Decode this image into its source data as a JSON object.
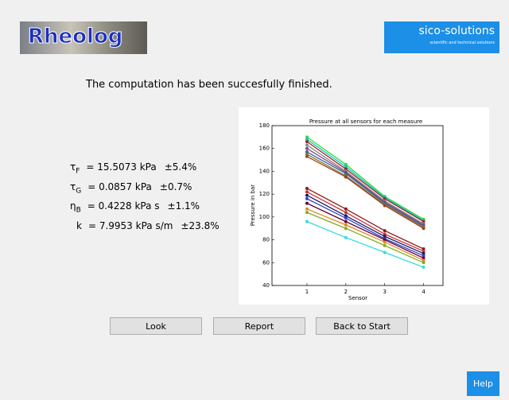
{
  "header": {
    "logo": "Rheolog",
    "brand": "sico-solutions",
    "tagline": "scientific and technical solutions"
  },
  "message": "The computation has been succesfully finished.",
  "parameters": [
    {
      "symbol": "τ",
      "sub": "F",
      "value": "= 15.5073 kPa",
      "error": "±5.4%"
    },
    {
      "symbol": "τ",
      "sub": "G",
      "value": "= 0.0857 kPa",
      "error": "±0.7%"
    },
    {
      "symbol": "η",
      "sub": "B",
      "value": "= 0.4228 kPa s",
      "error": "±1.1%"
    },
    {
      "symbol": "k",
      "value": "= 7.9953 kPa s/m",
      "error": "±23.8%"
    }
  ],
  "buttons": [
    "Look",
    "Report",
    "Back to Start"
  ],
  "help": "Help",
  "chart_data": {
    "type": "line",
    "title": "Pressure at all sensors for each measure",
    "x_label": "Sensor",
    "y_label": "Pressure in bar",
    "x": [
      1,
      2,
      3,
      4
    ],
    "xlim": [
      0.1,
      4.5
    ],
    "xticks": [
      1,
      2,
      3,
      4
    ],
    "ylim": [
      40,
      180
    ],
    "yticks": [
      40,
      60,
      80,
      100,
      120,
      140,
      160,
      180
    ],
    "markers": true,
    "series": [
      {
        "color": "#33dd33",
        "values": [
          170,
          146,
          118,
          98
        ]
      },
      {
        "color": "#00cccc",
        "values": [
          168,
          144,
          117,
          97
        ]
      },
      {
        "color": "#aa2222",
        "values": [
          166,
          142,
          116,
          96
        ]
      },
      {
        "color": "#888888",
        "values": [
          163,
          140,
          114,
          94
        ]
      },
      {
        "color": "#884488",
        "values": [
          160,
          139,
          113,
          93
        ]
      },
      {
        "color": "#336699",
        "values": [
          157,
          138,
          112,
          92
        ]
      },
      {
        "color": "#887733",
        "values": [
          155,
          136,
          111,
          91
        ]
      },
      {
        "color": "#994422",
        "values": [
          153,
          135,
          110,
          90
        ]
      },
      {
        "color": "#8b1a1a",
        "values": [
          125,
          107,
          88,
          72
        ]
      },
      {
        "color": "#cc3333",
        "values": [
          122,
          104,
          85,
          70
        ]
      },
      {
        "color": "#1a1a66",
        "values": [
          119,
          101,
          83,
          68
        ]
      },
      {
        "color": "#3344cc",
        "values": [
          116,
          99,
          81,
          66
        ]
      },
      {
        "color": "#660033",
        "values": [
          112,
          96,
          80,
          64
        ]
      },
      {
        "color": "#dd8822",
        "values": [
          107,
          93,
          78,
          62
        ]
      },
      {
        "color": "#88aa22",
        "values": [
          104,
          90,
          75,
          60
        ]
      },
      {
        "color": "#33dddd",
        "values": [
          96,
          82,
          69,
          56
        ]
      }
    ]
  }
}
